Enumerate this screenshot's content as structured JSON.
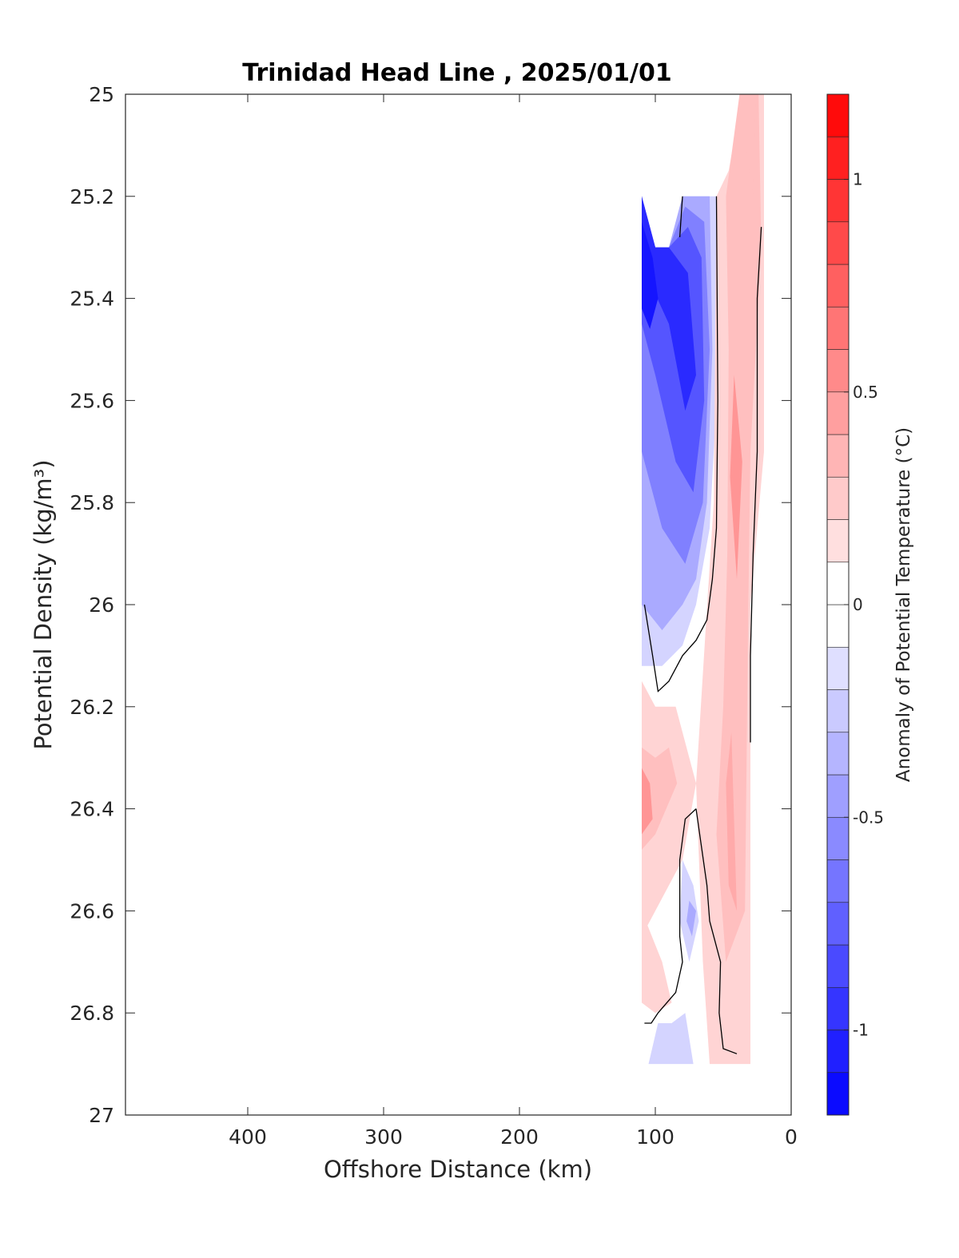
{
  "chart_data": {
    "type": "contour",
    "title": "Trinidad Head Line , 2025/01/01",
    "xlabel": "Offshore Distance (km)",
    "ylabel": "Potential Density (kg/m³)",
    "xlim": [
      490,
      0
    ],
    "ylim": [
      25,
      27
    ],
    "x_reversed": true,
    "y_reversed": true,
    "x_ticks": [
      400,
      300,
      200,
      100,
      0
    ],
    "x_tick_labels": [
      "400",
      "300",
      "200",
      "100",
      "0"
    ],
    "y_ticks": [
      25,
      25.2,
      25.4,
      25.6,
      25.8,
      26,
      26.2,
      26.4,
      26.6,
      26.8,
      27
    ],
    "y_tick_labels": [
      "25",
      "25.2",
      "25.4",
      "25.6",
      "25.8",
      "26",
      "26.2",
      "26.4",
      "26.6",
      "26.8",
      "27"
    ],
    "colorbar": {
      "label": "Anomaly of Potential Temperature (°C)",
      "range": [
        -1.2,
        1.2
      ],
      "levels": [
        -1.2,
        -1.1,
        -1.0,
        -0.9,
        -0.8,
        -0.7,
        -0.6,
        -0.5,
        -0.4,
        -0.3,
        -0.2,
        -0.1,
        0,
        0.1,
        0.2,
        0.3,
        0.4,
        0.5,
        0.6,
        0.7,
        0.8,
        0.9,
        1.0,
        1.1,
        1.2
      ],
      "ticks": [
        -1,
        -0.5,
        0,
        0.5,
        1
      ],
      "tick_labels": [
        "-1",
        "-0.5",
        "0",
        "0.5",
        "1"
      ],
      "colormap": "blue-white-red"
    },
    "anomaly_regions": [
      {
        "value": -0.2,
        "points": [
          [
            110,
            25.2
          ],
          [
            100,
            25.3
          ],
          [
            90,
            25.3
          ],
          [
            80,
            25.2
          ],
          [
            55,
            25.2
          ],
          [
            55,
            25.6
          ],
          [
            60,
            25.85
          ],
          [
            70,
            26.0
          ],
          [
            80,
            26.08
          ],
          [
            95,
            26.12
          ],
          [
            110,
            26.12
          ]
        ]
      },
      {
        "value": -0.4,
        "points": [
          [
            110,
            25.2
          ],
          [
            100,
            25.3
          ],
          [
            90,
            25.3
          ],
          [
            80,
            25.2
          ],
          [
            60,
            25.2
          ],
          [
            58,
            25.5
          ],
          [
            62,
            25.8
          ],
          [
            70,
            25.95
          ],
          [
            80,
            26.0
          ],
          [
            95,
            26.05
          ],
          [
            110,
            26.0
          ]
        ]
      },
      {
        "value": -0.6,
        "points": [
          [
            110,
            25.2
          ],
          [
            100,
            25.3
          ],
          [
            90,
            25.3
          ],
          [
            78,
            25.22
          ],
          [
            64,
            25.25
          ],
          [
            60,
            25.5
          ],
          [
            65,
            25.8
          ],
          [
            78,
            25.92
          ],
          [
            95,
            25.85
          ],
          [
            110,
            25.7
          ]
        ]
      },
      {
        "value": -0.8,
        "points": [
          [
            110,
            25.2
          ],
          [
            100,
            25.3
          ],
          [
            90,
            25.3
          ],
          [
            76,
            25.26
          ],
          [
            66,
            25.32
          ],
          [
            64,
            25.6
          ],
          [
            72,
            25.78
          ],
          [
            85,
            25.72
          ],
          [
            100,
            25.55
          ],
          [
            110,
            25.45
          ]
        ]
      },
      {
        "value": -1.0,
        "points": [
          [
            110,
            25.2
          ],
          [
            100,
            25.3
          ],
          [
            90,
            25.3
          ],
          [
            76,
            25.35
          ],
          [
            70,
            25.55
          ],
          [
            78,
            25.62
          ],
          [
            90,
            25.45
          ],
          [
            102,
            25.38
          ],
          [
            110,
            25.32
          ]
        ]
      },
      {
        "value": -1.1,
        "points": [
          [
            110,
            25.25
          ],
          [
            102,
            25.32
          ],
          [
            98,
            25.4
          ],
          [
            104,
            25.46
          ],
          [
            110,
            25.42
          ]
        ]
      },
      {
        "value": 0.2,
        "points": [
          [
            55,
            25.2
          ],
          [
            46,
            25.15
          ],
          [
            36,
            25.0
          ],
          [
            20,
            25.0
          ],
          [
            20,
            25.7
          ],
          [
            30,
            26.0
          ],
          [
            30,
            26.9
          ],
          [
            60,
            26.9
          ],
          [
            65,
            26.7
          ],
          [
            70,
            26.35
          ],
          [
            63,
            26.05
          ],
          [
            57,
            25.8
          ]
        ]
      },
      {
        "value": 0.3,
        "points": [
          [
            48,
            25.2
          ],
          [
            38,
            25.0
          ],
          [
            24,
            25.0
          ],
          [
            22,
            25.3
          ],
          [
            30,
            25.7
          ],
          [
            32,
            26.1
          ],
          [
            34,
            26.6
          ],
          [
            48,
            26.7
          ],
          [
            55,
            26.45
          ],
          [
            50,
            26.2
          ],
          [
            47,
            25.9
          ],
          [
            46,
            25.5
          ]
        ]
      },
      {
        "value": 0.5,
        "points": [
          [
            42,
            25.55
          ],
          [
            36,
            25.72
          ],
          [
            40,
            25.95
          ],
          [
            45,
            25.75
          ]
        ]
      },
      {
        "value": 0.3,
        "points": [
          [
            34,
            25.0
          ],
          [
            26,
            25.0
          ],
          [
            28,
            25.2
          ],
          [
            34,
            25.1
          ]
        ]
      },
      {
        "value": 0.4,
        "points": [
          [
            44,
            26.25
          ],
          [
            40,
            26.6
          ],
          [
            46,
            26.55
          ],
          [
            48,
            26.35
          ]
        ]
      },
      {
        "value": 0.2,
        "points": [
          [
            110,
            26.15
          ],
          [
            100,
            26.2
          ],
          [
            85,
            26.2
          ],
          [
            75,
            26.3
          ],
          [
            70,
            26.35
          ],
          [
            80,
            26.5
          ],
          [
            100,
            26.6
          ],
          [
            110,
            26.65
          ]
        ]
      },
      {
        "value": 0.2,
        "points": [
          [
            110,
            26.6
          ],
          [
            95,
            26.7
          ],
          [
            88,
            26.78
          ],
          [
            100,
            26.8
          ],
          [
            110,
            26.78
          ]
        ]
      },
      {
        "value": 0.3,
        "points": [
          [
            110,
            26.28
          ],
          [
            100,
            26.3
          ],
          [
            90,
            26.28
          ],
          [
            84,
            26.35
          ],
          [
            100,
            26.45
          ],
          [
            110,
            26.48
          ]
        ]
      },
      {
        "value": 0.5,
        "points": [
          [
            110,
            26.32
          ],
          [
            104,
            26.35
          ],
          [
            102,
            26.42
          ],
          [
            110,
            26.45
          ]
        ]
      },
      {
        "value": -0.2,
        "points": [
          [
            80,
            26.5
          ],
          [
            72,
            26.55
          ],
          [
            68,
            26.62
          ],
          [
            75,
            26.7
          ],
          [
            82,
            26.62
          ]
        ]
      },
      {
        "value": -0.4,
        "points": [
          [
            75,
            26.58
          ],
          [
            70,
            26.6
          ],
          [
            73,
            26.65
          ],
          [
            77,
            26.62
          ]
        ]
      },
      {
        "value": -0.2,
        "points": [
          [
            105,
            26.9
          ],
          [
            98,
            26.82
          ],
          [
            88,
            26.82
          ],
          [
            78,
            26.8
          ],
          [
            72,
            26.9
          ]
        ]
      }
    ],
    "zero_contours": [
      [
        [
          55,
          25.2
        ],
        [
          54,
          25.6
        ],
        [
          55,
          25.85
        ],
        [
          58,
          25.95
        ],
        [
          62,
          26.03
        ],
        [
          70,
          26.07
        ],
        [
          80,
          26.1
        ],
        [
          90,
          26.15
        ],
        [
          98,
          26.17
        ],
        [
          102,
          26.1
        ],
        [
          108,
          26.0
        ]
      ],
      [
        [
          80,
          25.2
        ],
        [
          82,
          25.28
        ]
      ],
      [
        [
          22,
          25.26
        ],
        [
          25,
          25.4
        ],
        [
          25,
          25.7
        ],
        [
          28,
          25.9
        ],
        [
          30,
          26.1
        ],
        [
          30,
          26.27
        ]
      ],
      [
        [
          70,
          26.4
        ],
        [
          78,
          26.42
        ],
        [
          82,
          26.5
        ],
        [
          82,
          26.65
        ],
        [
          80,
          26.7
        ],
        [
          85,
          26.76
        ],
        [
          98,
          26.8
        ],
        [
          103,
          26.82
        ],
        [
          108,
          26.82
        ]
      ],
      [
        [
          70,
          26.4
        ],
        [
          62,
          26.55
        ],
        [
          60,
          26.62
        ],
        [
          52,
          26.7
        ],
        [
          53,
          26.8
        ],
        [
          50,
          26.87
        ],
        [
          40,
          26.88
        ]
      ]
    ]
  }
}
